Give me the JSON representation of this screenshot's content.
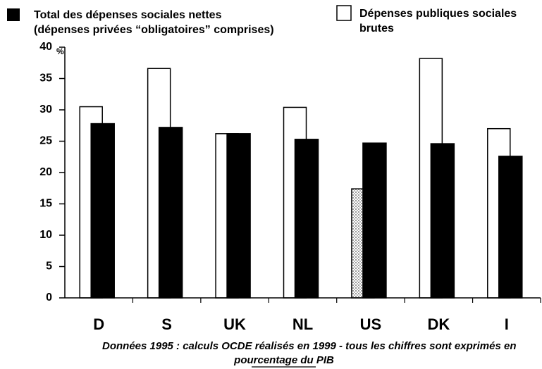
{
  "chart_data": {
    "type": "bar",
    "categories": [
      "D",
      "S",
      "UK",
      "NL",
      "US",
      "DK",
      "I"
    ],
    "series": [
      {
        "name": "Dépenses publiques sociales",
        "name_note": "brutes",
        "color": "#ffffff",
        "values": [
          30.5,
          36.6,
          26.2,
          30.4,
          17.4,
          38.2,
          27.0
        ],
        "hatched": [
          "US"
        ]
      },
      {
        "name": "Total des dépenses sociales nettes",
        "name_note": "(dépenses privées “obligatoires” comprises)",
        "color": "#000000",
        "values": [
          27.8,
          27.2,
          26.2,
          25.3,
          24.7,
          24.6,
          22.6
        ]
      }
    ],
    "ylim": [
      0,
      40
    ],
    "yticks": [
      0,
      5,
      10,
      15,
      20,
      25,
      30,
      35,
      40
    ],
    "y_unit": "%",
    "footnote": [
      "Données 1995 :  calculs OCDE réalisés en 1999 - tous les chiffres sont exprimés en",
      "pourcentage du PIB"
    ]
  }
}
